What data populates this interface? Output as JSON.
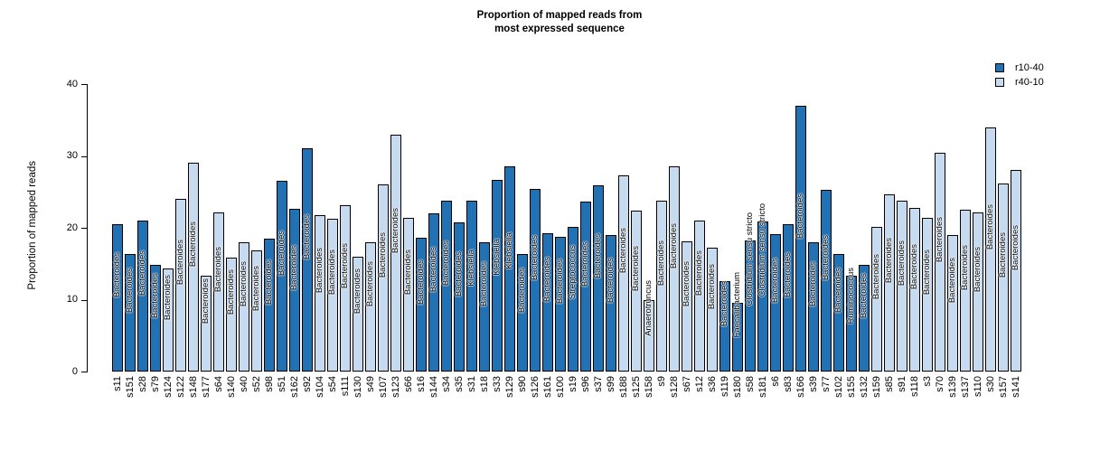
{
  "title_line1": "Proportion of mapped reads from",
  "title_line2": "most expressed sequence",
  "y_axis": {
    "label": "Proportion of mapped reads",
    "ticks": [
      0,
      10,
      20,
      30,
      40
    ]
  },
  "legend": {
    "items": [
      {
        "label": "r10-40",
        "color": "#2171B5"
      },
      {
        "label": "r40-10",
        "color": "#C6DBEF"
      }
    ]
  },
  "chart_data": {
    "type": "bar",
    "title": "Proportion of mapped reads from most expressed sequence",
    "xlabel": "",
    "ylabel": "Proportion of mapped reads",
    "ylim": [
      0,
      40
    ],
    "grid": false,
    "legend_position": "top-right",
    "series": [
      {
        "name": "r10-40",
        "color": "#2171B5"
      },
      {
        "name": "r40-10",
        "color": "#C6DBEF"
      }
    ],
    "bars": [
      {
        "sample": "s11",
        "genus": "Bacteroides",
        "value": 20.5,
        "series": "r10-40"
      },
      {
        "sample": "s151",
        "genus": "Bacteroides",
        "value": 16.4,
        "series": "r10-40"
      },
      {
        "sample": "s28",
        "genus": "Bacteroides",
        "value": 21.0,
        "series": "r10-40"
      },
      {
        "sample": "s79",
        "genus": "Bacteroides",
        "value": 14.9,
        "series": "r10-40"
      },
      {
        "sample": "s124",
        "genus": "Bacteroides",
        "value": 14.4,
        "series": "r40-10"
      },
      {
        "sample": "s122",
        "genus": "Bacteroides",
        "value": 24.0,
        "series": "r40-10"
      },
      {
        "sample": "s148",
        "genus": "Bacteroides",
        "value": 29.0,
        "series": "r40-10"
      },
      {
        "sample": "s177",
        "genus": "Bacteroides",
        "value": 13.3,
        "series": "r40-10"
      },
      {
        "sample": "s64",
        "genus": "Bacteroides",
        "value": 22.2,
        "series": "r40-10"
      },
      {
        "sample": "s140",
        "genus": "Bacteroides",
        "value": 15.8,
        "series": "r40-10"
      },
      {
        "sample": "s40",
        "genus": "Bacteroides",
        "value": 18.0,
        "series": "r40-10"
      },
      {
        "sample": "s52",
        "genus": "Bacteroides",
        "value": 16.8,
        "series": "r40-10"
      },
      {
        "sample": "s98",
        "genus": "Bacteroides",
        "value": 18.5,
        "series": "r10-40"
      },
      {
        "sample": "s51",
        "genus": "Bacteroides",
        "value": 26.5,
        "series": "r10-40"
      },
      {
        "sample": "s162",
        "genus": "Bacteroides",
        "value": 22.7,
        "series": "r10-40"
      },
      {
        "sample": "s92",
        "genus": "Bacteroides",
        "value": 31.1,
        "series": "r10-40"
      },
      {
        "sample": "s104",
        "genus": "Bacteroides",
        "value": 21.8,
        "series": "r40-10"
      },
      {
        "sample": "s54",
        "genus": "Bacteroides",
        "value": 21.2,
        "series": "r40-10"
      },
      {
        "sample": "s111",
        "genus": "Bacteroides",
        "value": 23.1,
        "series": "r40-10"
      },
      {
        "sample": "s130",
        "genus": "Bacteroides",
        "value": 16.0,
        "series": "r40-10"
      },
      {
        "sample": "s49",
        "genus": "Bacteroides",
        "value": 18.0,
        "series": "r40-10"
      },
      {
        "sample": "s107",
        "genus": "Bacteroides",
        "value": 26.0,
        "series": "r40-10"
      },
      {
        "sample": "s123",
        "genus": "Bacteroides",
        "value": 32.9,
        "series": "r40-10"
      },
      {
        "sample": "s66",
        "genus": "Bacteroides",
        "value": 21.4,
        "series": "r40-10"
      },
      {
        "sample": "s16",
        "genus": "Bacteroides",
        "value": 18.6,
        "series": "r10-40"
      },
      {
        "sample": "s144",
        "genus": "Bacteroides",
        "value": 22.0,
        "series": "r10-40"
      },
      {
        "sample": "s34",
        "genus": "Bacteroides",
        "value": 23.8,
        "series": "r10-40"
      },
      {
        "sample": "s35",
        "genus": "Bacteroides",
        "value": 20.7,
        "series": "r10-40"
      },
      {
        "sample": "s31",
        "genus": "Klebsiella",
        "value": 23.8,
        "series": "r10-40"
      },
      {
        "sample": "s18",
        "genus": "Bacteroides",
        "value": 18.0,
        "series": "r10-40"
      },
      {
        "sample": "s33",
        "genus": "Klebsiella",
        "value": 26.7,
        "series": "r10-40"
      },
      {
        "sample": "s129",
        "genus": "Klebsiella",
        "value": 28.6,
        "series": "r10-40"
      },
      {
        "sample": "s90",
        "genus": "Bacteroides",
        "value": 16.3,
        "series": "r10-40"
      },
      {
        "sample": "s126",
        "genus": "Bacteroides",
        "value": 25.4,
        "series": "r10-40"
      },
      {
        "sample": "s161",
        "genus": "Bacteroides",
        "value": 19.3,
        "series": "r10-40"
      },
      {
        "sample": "s100",
        "genus": "Bacteroides",
        "value": 18.8,
        "series": "r10-40"
      },
      {
        "sample": "s19",
        "genus": "Streptococcus",
        "value": 20.1,
        "series": "r10-40"
      },
      {
        "sample": "s96",
        "genus": "Bacteroides",
        "value": 23.6,
        "series": "r10-40"
      },
      {
        "sample": "s37",
        "genus": "Bacteroides",
        "value": 25.9,
        "series": "r10-40"
      },
      {
        "sample": "s99",
        "genus": "Bacteroides",
        "value": 19.0,
        "series": "r10-40"
      },
      {
        "sample": "s188",
        "genus": "Bacteroides",
        "value": 27.3,
        "series": "r40-10"
      },
      {
        "sample": "s125",
        "genus": "Bacteroides",
        "value": 22.4,
        "series": "r40-10"
      },
      {
        "sample": "s158",
        "genus": "Anaerotruncus",
        "value": 9.9,
        "series": "r40-10"
      },
      {
        "sample": "s9",
        "genus": "Bacteroides",
        "value": 23.8,
        "series": "r40-10"
      },
      {
        "sample": "s128",
        "genus": "Bacteroides",
        "value": 28.5,
        "series": "r40-10"
      },
      {
        "sample": "s67",
        "genus": "Bacteroides",
        "value": 18.1,
        "series": "r40-10"
      },
      {
        "sample": "s12",
        "genus": "Bacteroides",
        "value": 21.0,
        "series": "r40-10"
      },
      {
        "sample": "s36",
        "genus": "Bacteroides",
        "value": 17.2,
        "series": "r40-10"
      },
      {
        "sample": "s119",
        "genus": "Bacteroides",
        "value": 12.6,
        "series": "r10-40"
      },
      {
        "sample": "s180",
        "genus": "Faecalibacterium",
        "value": 9.6,
        "series": "r10-40"
      },
      {
        "sample": "s58",
        "genus": "Clostridium sensu stricto",
        "value": 18.3,
        "series": "r10-40"
      },
      {
        "sample": "s181",
        "genus": "Clostridium sensu stricto",
        "value": 20.9,
        "series": "r10-40"
      },
      {
        "sample": "s6",
        "genus": "Bacteroides",
        "value": 19.1,
        "series": "r10-40"
      },
      {
        "sample": "s83",
        "genus": "Bacteroides",
        "value": 20.5,
        "series": "r10-40"
      },
      {
        "sample": "s166",
        "genus": "Bacteroides",
        "value": 37.0,
        "series": "r10-40"
      },
      {
        "sample": "s39",
        "genus": "Bacteroides",
        "value": 18.0,
        "series": "r10-40"
      },
      {
        "sample": "s77",
        "genus": "Bacteroides",
        "value": 25.3,
        "series": "r10-40"
      },
      {
        "sample": "s102",
        "genus": "Bacteroides",
        "value": 16.4,
        "series": "r10-40"
      },
      {
        "sample": "s155",
        "genus": "Ruminococcus",
        "value": 13.3,
        "series": "r10-40"
      },
      {
        "sample": "s132",
        "genus": "Bacteroides",
        "value": 14.9,
        "series": "r10-40"
      },
      {
        "sample": "s159",
        "genus": "Bacteroides",
        "value": 20.1,
        "series": "r40-10"
      },
      {
        "sample": "s85",
        "genus": "Bacteroides",
        "value": 24.7,
        "series": "r40-10"
      },
      {
        "sample": "s91",
        "genus": "Bacteroides",
        "value": 23.8,
        "series": "r40-10"
      },
      {
        "sample": "s118",
        "genus": "Bacteroides",
        "value": 22.8,
        "series": "r40-10"
      },
      {
        "sample": "s3",
        "genus": "Bacteroides",
        "value": 21.4,
        "series": "r40-10"
      },
      {
        "sample": "s70",
        "genus": "Bacteroides",
        "value": 30.5,
        "series": "r40-10"
      },
      {
        "sample": "s139",
        "genus": "Bacteroides",
        "value": 19.0,
        "series": "r40-10"
      },
      {
        "sample": "s137",
        "genus": "Bacteroides",
        "value": 22.5,
        "series": "r40-10"
      },
      {
        "sample": "s110",
        "genus": "Bacteroides",
        "value": 22.2,
        "series": "r40-10"
      },
      {
        "sample": "s30",
        "genus": "Bacteroides",
        "value": 34.0,
        "series": "r40-10"
      },
      {
        "sample": "s157",
        "genus": "Bacteroides",
        "value": 26.2,
        "series": "r40-10"
      },
      {
        "sample": "s141",
        "genus": "Bacteroides",
        "value": 28.1,
        "series": "r40-10"
      }
    ]
  }
}
